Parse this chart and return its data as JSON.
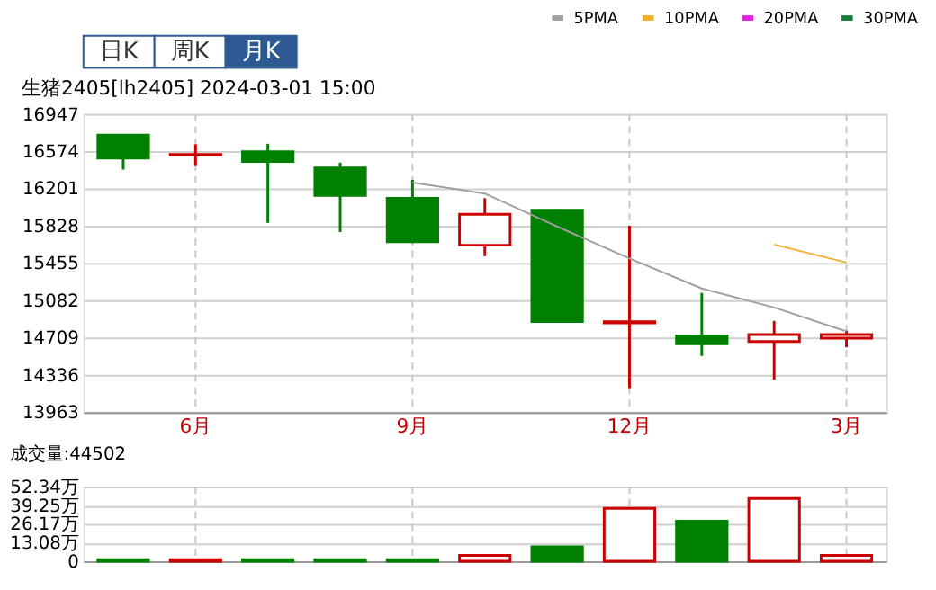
{
  "chart_data": [
    {
      "type": "candlestick",
      "title": "生猪2405[lh2405] 2024-03-01 15:00",
      "annotations": [
        "日K",
        "周K",
        "月K"
      ],
      "categories": [
        null,
        "6月",
        null,
        null,
        "9月",
        null,
        null,
        "12月",
        null,
        null,
        "3月"
      ],
      "ohlc": [
        [
          16735,
          16735,
          16390,
          16505
        ],
        [
          16535,
          16643,
          16425,
          16540
        ],
        [
          16568,
          16648,
          15856,
          16471
        ],
        [
          16407,
          16459,
          15765,
          16132
        ],
        [
          16103,
          16287,
          15655,
          15667
        ],
        [
          15633,
          16103,
          15523,
          15943
        ],
        [
          15983,
          15994,
          14869,
          14869
        ],
        [
          14855,
          15828,
          14203,
          14866
        ],
        [
          14726,
          15156,
          14525,
          14645
        ],
        [
          14668,
          14875,
          14289,
          14738
        ],
        [
          14703,
          14777,
          14611,
          14738
        ]
      ],
      "colors": [
        "#008000",
        "#cc0000",
        "#008000",
        "#008000",
        "#008000",
        "#cc0000",
        "#008000",
        "#cc0000",
        "#008000",
        "#cc0000",
        "#cc0000"
      ],
      "series": [
        {
          "name": "5PMA",
          "type": "line",
          "color": "#a0a0a0",
          "values": [
            null,
            null,
            null,
            null,
            16260,
            16150,
            15820,
            15500,
            15200,
            15010,
            14770
          ]
        },
        {
          "name": "10PMA",
          "type": "line",
          "color": "#f0b030",
          "values": [
            null,
            null,
            null,
            null,
            null,
            null,
            null,
            null,
            null,
            15640,
            15460
          ]
        },
        {
          "name": "20PMA",
          "type": "line",
          "color": "#e020e0",
          "values": [
            null,
            null,
            null,
            null,
            null,
            null,
            null,
            null,
            null,
            null,
            null
          ]
        },
        {
          "name": "30PMA",
          "type": "line",
          "color": "#1a7a3a",
          "values": [
            null,
            null,
            null,
            null,
            null,
            null,
            null,
            null,
            null,
            null,
            null
          ]
        }
      ],
      "ylim": [
        13963,
        16947
      ],
      "yticks": [
        13963,
        14336,
        14709,
        15082,
        15455,
        15828,
        16201,
        16574,
        16947
      ],
      "grid": true,
      "legend": "top right"
    },
    {
      "type": "bar",
      "title": "成交量:44502",
      "categories": [
        null,
        null,
        null,
        null,
        null,
        null,
        null,
        null,
        null,
        null,
        null
      ],
      "values": [
        1,
        1,
        1,
        1,
        1,
        4,
        10,
        37,
        28,
        44,
        4
      ],
      "colors": [
        "#008000",
        "#cc0000",
        "#008000",
        "#008000",
        "#008000",
        "#cc0000",
        "#008000",
        "#cc0000",
        "#008000",
        "#cc0000",
        "#cc0000"
      ],
      "ylim": [
        0,
        52.34
      ],
      "yticks": [
        {
          "value": 0,
          "label": "0"
        },
        {
          "value": 13.08,
          "label": "13.08万"
        },
        {
          "value": 26.17,
          "label": "26.17万"
        },
        {
          "value": 39.25,
          "label": "39.25万"
        },
        {
          "value": 52.34,
          "label": "52.34万"
        }
      ],
      "grid": true,
      "tick_labels": "y"
    }
  ]
}
